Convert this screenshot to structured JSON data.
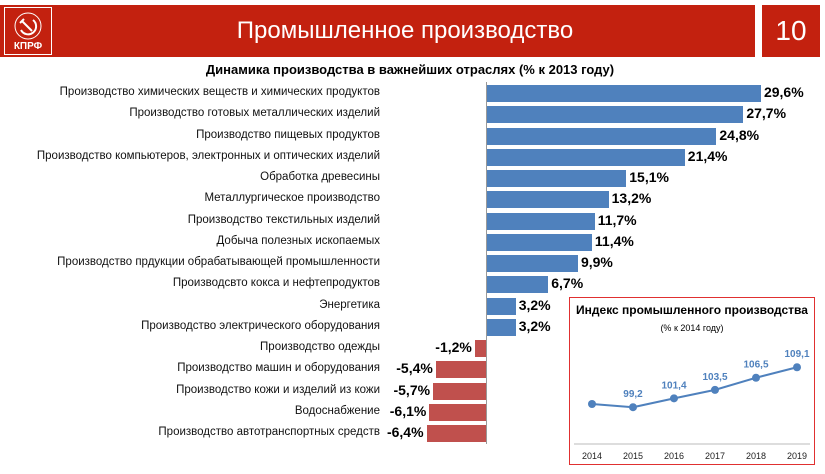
{
  "header": {
    "title": "Промышленное производство",
    "slide_number": "10",
    "logo_text": "КПРФ"
  },
  "chart_data": [
    {
      "type": "bar",
      "orientation": "horizontal",
      "title": "Динамика производства в важнейших отраслях (% к 2013 году)",
      "categories": [
        "Производство химических веществ и химических продуктов",
        "Производство готовых металлических изделий",
        "Производство пищевых продуктов",
        "Производство компьютеров, электронных и оптических изделий",
        "Обработка древесины",
        "Металлургическое производство",
        "Производство текстильных изделий",
        "Добыча полезных ископаемых",
        "Производство прдукции обрабатывающей промышленности",
        "Производсвто кокса и нефтепродуктов",
        "Энергетика",
        "Производство электрического оборудования",
        "Производство одежды",
        "Производство машин и оборудования",
        "Производство кожи и изделий из кожи",
        "Водоснабжение",
        "Производство автотранспортных средств"
      ],
      "values": [
        29.6,
        27.7,
        24.8,
        21.4,
        15.1,
        13.2,
        11.7,
        11.4,
        9.9,
        6.7,
        3.2,
        3.2,
        -1.2,
        -5.4,
        -5.7,
        -6.1,
        -6.4
      ],
      "labels": [
        "29,6%",
        "27,7%",
        "24,8%",
        "21,4%",
        "15,1%",
        "13,2%",
        "11,7%",
        "11,4%",
        "9,9%",
        "6,7%",
        "3,2%",
        "3,2%",
        "-1,2%",
        "-5,4%",
        "-5,7%",
        "-6,1%",
        "-6,4%"
      ],
      "colors": {
        "positive": "#4f81bd",
        "negative": "#c0504d"
      }
    },
    {
      "type": "line",
      "title": "Индекс промышленного производства",
      "subtitle": "(% к 2014 году)",
      "x": [
        "2014",
        "2015",
        "2016",
        "2017",
        "2018",
        "2019"
      ],
      "values": [
        100,
        99.2,
        101.4,
        103.5,
        106.5,
        109.1
      ],
      "labels": [
        "",
        "99,2",
        "101,4",
        "103,5",
        "106,5",
        "109,1"
      ],
      "color": "#4f81bd"
    }
  ]
}
